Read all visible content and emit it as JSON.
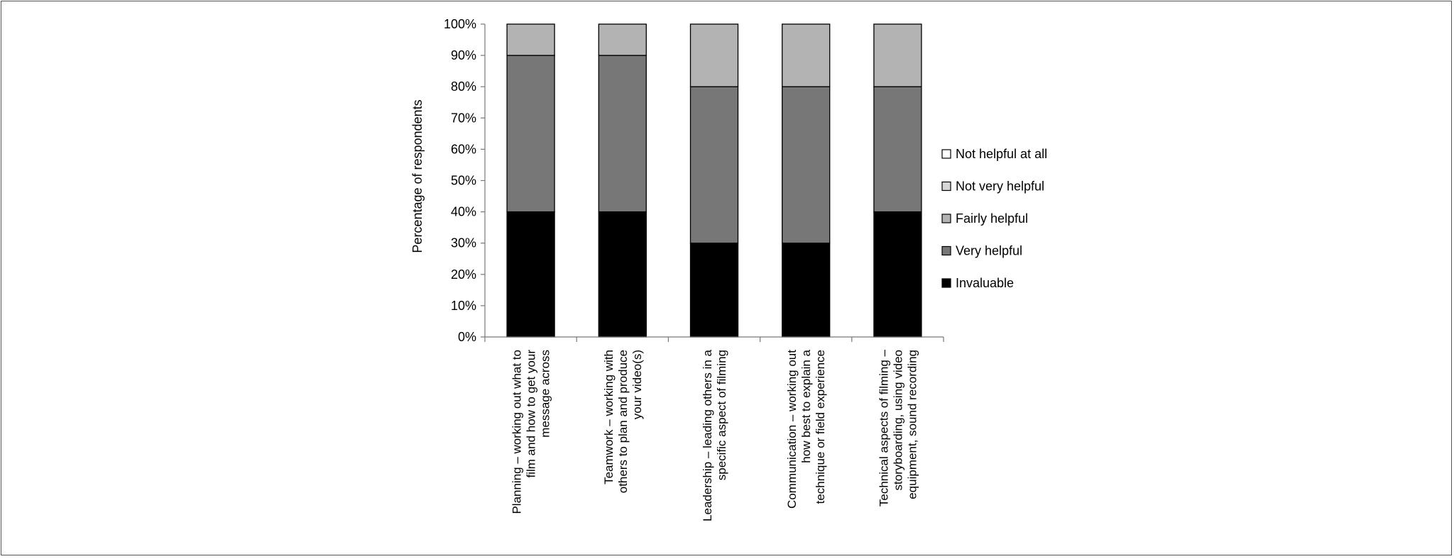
{
  "chart_data": {
    "type": "bar",
    "stacked": true,
    "ylabel": "Percentage of respondents",
    "ylim": [
      0,
      100
    ],
    "y_ticks": [
      "0%",
      "10%",
      "20%",
      "30%",
      "40%",
      "50%",
      "60%",
      "70%",
      "80%",
      "90%",
      "100%"
    ],
    "grid": false,
    "legend_position": "right",
    "categories": [
      [
        "Planning – working out what to",
        "film and how to get your",
        "message across"
      ],
      [
        "Teamwork – working with",
        "others to plan and produce",
        "your video(s)"
      ],
      [
        "Leadership – leading others in a",
        "specific aspect of filming"
      ],
      [
        "Communication – working out",
        "how best to explain a",
        "technique or field experience"
      ],
      [
        "Technical aspects of filming –",
        "storyboarding, using video",
        "equipment, sound recording"
      ]
    ],
    "series": [
      {
        "name": "Invaluable",
        "color": "#000000",
        "values": [
          40,
          40,
          30,
          30,
          40
        ]
      },
      {
        "name": "Very helpful",
        "color": "#777777",
        "values": [
          50,
          50,
          50,
          50,
          40
        ]
      },
      {
        "name": "Fairly helpful",
        "color": "#b3b3b3",
        "values": [
          10,
          10,
          20,
          20,
          20
        ]
      },
      {
        "name": "Not very helpful",
        "color": "#d6d6d6",
        "values": [
          0,
          0,
          0,
          0,
          0
        ]
      },
      {
        "name": "Not helpful  at all",
        "color": "#ffffff",
        "values": [
          0,
          0,
          0,
          0,
          0
        ]
      }
    ],
    "legend_order": [
      "Not helpful  at all",
      "Not very helpful",
      "Fairly helpful",
      "Very helpful",
      "Invaluable"
    ]
  }
}
